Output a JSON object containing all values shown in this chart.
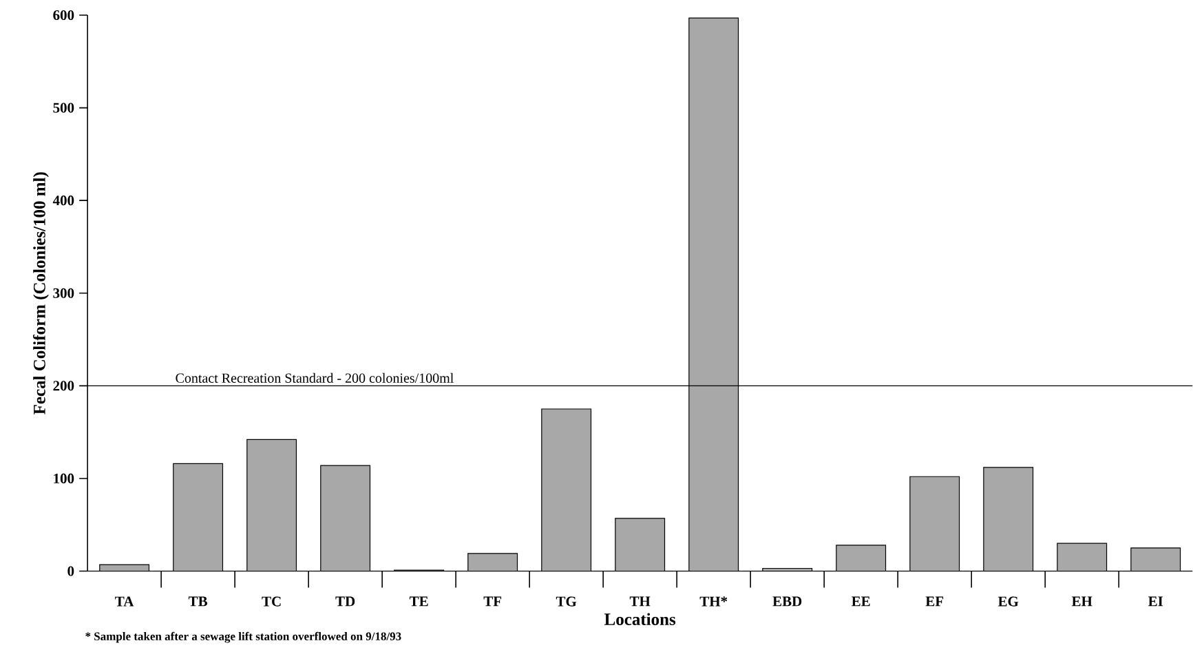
{
  "chart_data": {
    "type": "bar",
    "xlabel": "Locations",
    "ylabel": "Fecal Coliform (Colonies/100 ml)",
    "categories": [
      "TA",
      "TB",
      "TC",
      "TD",
      "TE",
      "TF",
      "TG",
      "TH",
      "TH*",
      "EBD",
      "EE",
      "EF",
      "EG",
      "EH",
      "EI"
    ],
    "values": [
      7,
      116,
      142,
      114,
      1,
      19,
      175,
      57,
      597,
      3,
      28,
      102,
      112,
      30,
      25
    ],
    "color": "#a8a8a8",
    "ylim": [
      0,
      600
    ],
    "yticks": [
      0,
      100,
      200,
      300,
      400,
      500,
      600
    ],
    "ref_lines": [
      {
        "axis": "y",
        "value": 200,
        "label": "Contact Recreation Standard - 200 colonies/100ml",
        "color": "#000000"
      }
    ],
    "annotations": [
      "* Sample taken after a sewage lift station overflowed on 9/18/93"
    ]
  }
}
